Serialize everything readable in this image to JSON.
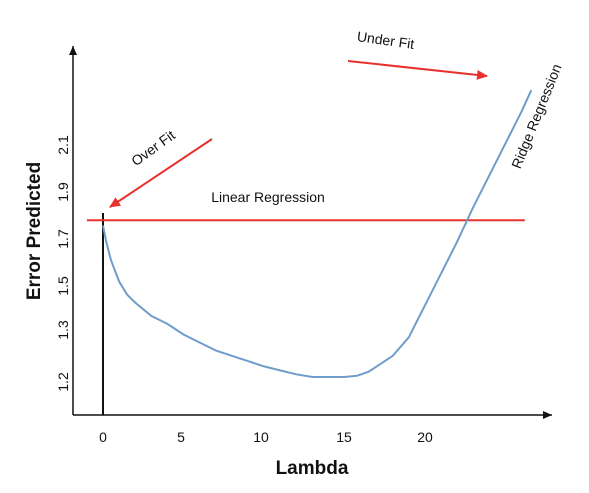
{
  "chart_data": {
    "type": "line",
    "title": "",
    "xlabel": "Lambda",
    "ylabel": "Error Predicted",
    "x_ticks": [
      "0",
      "5",
      "10",
      "15",
      "20"
    ],
    "y_ticks": [
      "1.2",
      "1.3",
      "1.5",
      "1.7",
      "1.9",
      "2.1"
    ],
    "series": [
      {
        "name": "Ridge Regression",
        "color": "#6f9ccb",
        "x": [
          0.0,
          0.2,
          0.5,
          1.0,
          1.5,
          2.0,
          3.0,
          4.0,
          5.0,
          6.0,
          7.0,
          8.0,
          9.0,
          10.0,
          11.0,
          12.0,
          13.0,
          14.0,
          15.0,
          15.8,
          16.5,
          17.0,
          18.0,
          19.0,
          19.5,
          20.0,
          21.0,
          22.0,
          23.0,
          24.0,
          25.0,
          26.0,
          26.6
        ],
        "y": [
          1.77,
          1.71,
          1.64,
          1.56,
          1.51,
          1.48,
          1.43,
          1.4,
          1.36,
          1.33,
          1.3,
          1.28,
          1.26,
          1.24,
          1.225,
          1.21,
          1.2,
          1.2,
          1.2,
          1.205,
          1.22,
          1.24,
          1.28,
          1.35,
          1.41,
          1.47,
          1.59,
          1.71,
          1.84,
          1.96,
          2.08,
          2.2,
          2.28
        ]
      },
      {
        "name": "Linear Regression",
        "color": "#e8312e",
        "x": [
          -1.0,
          26.2
        ],
        "y": [
          1.79,
          1.79
        ]
      }
    ],
    "annotations": [
      {
        "text": "Over Fit",
        "arrow_color": "#e8312e"
      },
      {
        "text": "Under Fit",
        "arrow_color": "#e8312e"
      }
    ],
    "series_labels": [
      "Linear Regression",
      "Ridge Regression"
    ],
    "xlim": [
      -1.0,
      27.0
    ],
    "ylim": [
      1.08,
      2.38
    ],
    "grid": false
  }
}
